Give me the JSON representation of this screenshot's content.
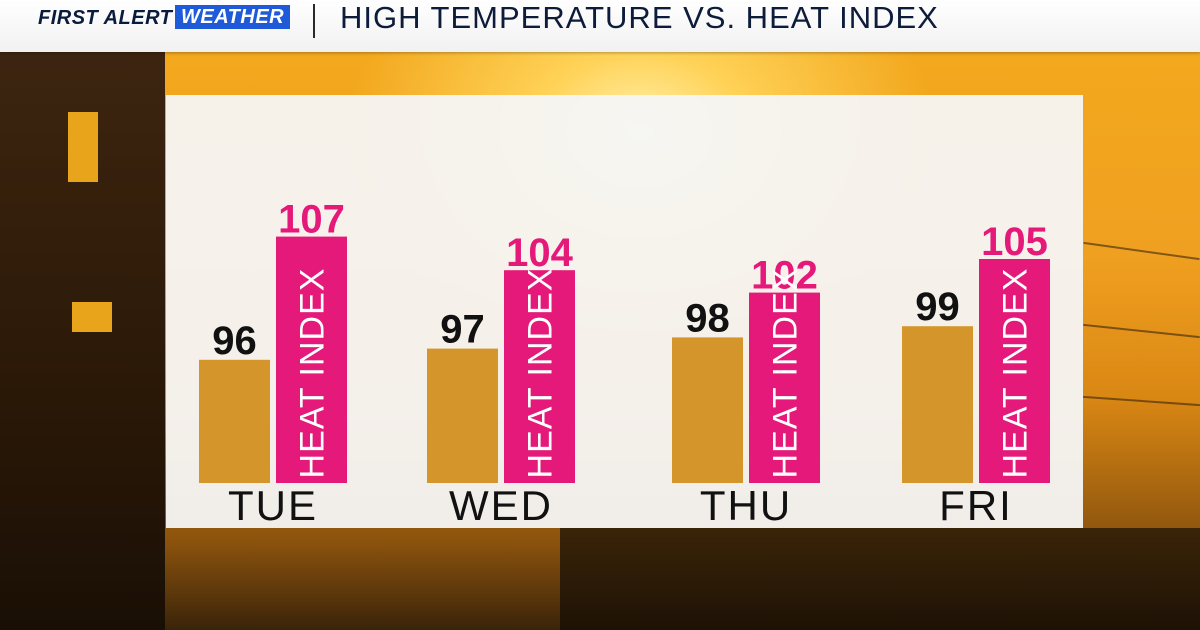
{
  "header": {
    "brand_first": "FIRST ALERT",
    "brand_weather": "WEATHER",
    "title": "HIGH TEMPERATURE VS. HEAT INDEX"
  },
  "colors": {
    "temp_bar": "#d4962a",
    "heat_bar": "#e5197a",
    "panel": "#f5f5f5",
    "brand_blue": "#1f5ad8"
  },
  "chart_data": {
    "type": "bar",
    "categories": [
      "TUE",
      "WED",
      "THU",
      "FRI"
    ],
    "series": [
      {
        "name": "",
        "values": [
          96,
          97,
          98,
          99
        ]
      },
      {
        "name": "HEAT INDEX",
        "values": [
          107,
          104,
          102,
          105
        ]
      }
    ],
    "title": "HIGH TEMPERATURE VS. HEAT INDEX",
    "xlabel": "",
    "ylabel": "",
    "grid": false,
    "legend": "none"
  }
}
